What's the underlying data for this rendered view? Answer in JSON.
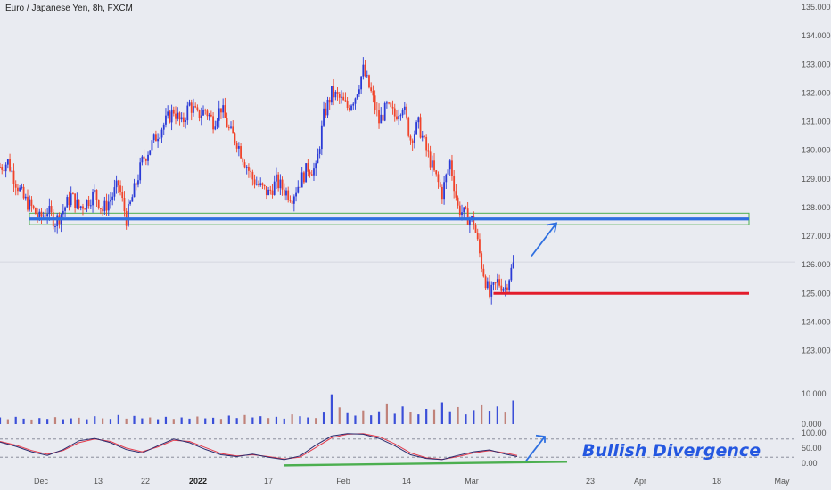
{
  "title": "Euro / Japanese Yen, 8h, FXCM",
  "chart_data": {
    "type": "candlestick",
    "price_axis": {
      "ylim": [
        122.3,
        135.0
      ],
      "ticks": [
        "135.000",
        "134.000",
        "133.000",
        "132.000",
        "131.000",
        "130.000",
        "129.000",
        "128.000",
        "127.000",
        "126.000",
        "125.000",
        "124.000",
        "123.000"
      ]
    },
    "volume_axis": {
      "ticks": [
        "10.000",
        "0.000"
      ]
    },
    "oscillator_axis": {
      "ylim": [
        0,
        100
      ],
      "ticks": [
        "100.00",
        "50.00",
        "0.00"
      ],
      "levels": [
        80,
        20
      ]
    },
    "x_ticks": [
      {
        "label": "Dec",
        "bold": false
      },
      {
        "label": "13",
        "bold": false
      },
      {
        "label": "22",
        "bold": false
      },
      {
        "label": "2022",
        "bold": true
      },
      {
        "label": "17",
        "bold": false
      },
      {
        "label": "Feb",
        "bold": false
      },
      {
        "label": "14",
        "bold": false
      },
      {
        "label": "Mar",
        "bold": false
      },
      {
        "label": "23",
        "bold": false
      },
      {
        "label": "Apr",
        "bold": false
      },
      {
        "label": "18",
        "bold": false
      },
      {
        "label": "May",
        "bold": false
      }
    ],
    "price_path": [
      [
        0,
        129.4
      ],
      [
        4,
        129.6
      ],
      [
        8,
        128.9
      ],
      [
        12,
        128.3
      ],
      [
        16,
        128.0
      ],
      [
        20,
        127.6
      ],
      [
        24,
        127.9
      ],
      [
        28,
        127.5
      ],
      [
        32,
        127.9
      ],
      [
        36,
        128.4
      ],
      [
        40,
        128.0
      ],
      [
        44,
        128.2
      ],
      [
        48,
        128.5
      ],
      [
        52,
        127.9
      ],
      [
        56,
        128.3
      ],
      [
        60,
        128.8
      ],
      [
        64,
        127.6
      ],
      [
        68,
        128.6
      ],
      [
        72,
        129.6
      ],
      [
        76,
        130.1
      ],
      [
        80,
        130.6
      ],
      [
        84,
        131.0
      ],
      [
        88,
        131.4
      ],
      [
        92,
        130.9
      ],
      [
        96,
        131.6
      ],
      [
        100,
        131.2
      ],
      [
        104,
        131.4
      ],
      [
        108,
        131.0
      ],
      [
        112,
        131.5
      ],
      [
        116,
        130.7
      ],
      [
        120,
        130.3
      ],
      [
        124,
        129.6
      ],
      [
        128,
        129.0
      ],
      [
        132,
        128.7
      ],
      [
        136,
        128.5
      ],
      [
        140,
        128.9
      ],
      [
        144,
        128.6
      ],
      [
        148,
        128.4
      ],
      [
        152,
        128.9
      ],
      [
        156,
        129.4
      ],
      [
        160,
        129.3
      ],
      [
        164,
        131.2
      ],
      [
        168,
        132.0
      ],
      [
        172,
        131.8
      ],
      [
        176,
        131.5
      ],
      [
        180,
        131.9
      ],
      [
        184,
        132.8
      ],
      [
        188,
        132.0
      ],
      [
        192,
        131.0
      ],
      [
        196,
        131.5
      ],
      [
        200,
        131.2
      ],
      [
        204,
        131.6
      ],
      [
        208,
        130.4
      ],
      [
        212,
        130.9
      ],
      [
        216,
        130.0
      ],
      [
        220,
        129.2
      ],
      [
        224,
        128.5
      ],
      [
        228,
        129.6
      ],
      [
        232,
        128.0
      ],
      [
        236,
        127.7
      ],
      [
        240,
        127.5
      ],
      [
        244,
        126.0
      ],
      [
        248,
        124.9
      ],
      [
        252,
        125.4
      ],
      [
        256,
        125.2
      ],
      [
        260,
        126.0
      ]
    ],
    "support_zone": {
      "from": 127.4,
      "to": 127.8
    },
    "support_line": 127.6,
    "target_line": 125.0,
    "volume": [
      [
        0,
        2.2
      ],
      [
        4,
        1.6
      ],
      [
        8,
        2.4
      ],
      [
        12,
        1.8
      ],
      [
        16,
        1.5
      ],
      [
        20,
        2.0
      ],
      [
        24,
        1.7
      ],
      [
        28,
        2.3
      ],
      [
        32,
        1.6
      ],
      [
        36,
        1.9
      ],
      [
        40,
        2.1
      ],
      [
        44,
        1.6
      ],
      [
        48,
        2.6
      ],
      [
        52,
        1.9
      ],
      [
        56,
        1.7
      ],
      [
        60,
        3.0
      ],
      [
        64,
        1.8
      ],
      [
        68,
        2.7
      ],
      [
        72,
        1.9
      ],
      [
        76,
        2.2
      ],
      [
        80,
        1.6
      ],
      [
        84,
        2.4
      ],
      [
        88,
        1.7
      ],
      [
        92,
        2.2
      ],
      [
        96,
        1.8
      ],
      [
        100,
        2.5
      ],
      [
        104,
        1.9
      ],
      [
        108,
        2.1
      ],
      [
        112,
        1.7
      ],
      [
        116,
        2.8
      ],
      [
        120,
        2.0
      ],
      [
        124,
        3.0
      ],
      [
        128,
        2.2
      ],
      [
        132,
        2.6
      ],
      [
        136,
        2.0
      ],
      [
        140,
        2.4
      ],
      [
        144,
        1.8
      ],
      [
        148,
        3.2
      ],
      [
        152,
        2.6
      ],
      [
        156,
        2.2
      ],
      [
        160,
        2.0
      ],
      [
        164,
        3.8
      ],
      [
        168,
        9.8
      ],
      [
        172,
        5.5
      ],
      [
        176,
        3.6
      ],
      [
        180,
        2.8
      ],
      [
        184,
        4.5
      ],
      [
        188,
        2.9
      ],
      [
        192,
        4.2
      ],
      [
        196,
        6.8
      ],
      [
        200,
        3.4
      ],
      [
        204,
        5.8
      ],
      [
        208,
        4.0
      ],
      [
        212,
        3.2
      ],
      [
        216,
        5.0
      ],
      [
        220,
        4.8
      ],
      [
        224,
        7.2
      ],
      [
        228,
        4.2
      ],
      [
        232,
        5.6
      ],
      [
        236,
        3.2
      ],
      [
        240,
        4.6
      ],
      [
        244,
        6.2
      ],
      [
        248,
        4.4
      ],
      [
        252,
        5.8
      ],
      [
        256,
        3.8
      ],
      [
        260,
        7.8
      ]
    ],
    "oscillator": {
      "k": [
        [
          0,
          70
        ],
        [
          8,
          56
        ],
        [
          16,
          38
        ],
        [
          24,
          26
        ],
        [
          32,
          45
        ],
        [
          40,
          74
        ],
        [
          48,
          82
        ],
        [
          56,
          68
        ],
        [
          64,
          45
        ],
        [
          72,
          34
        ],
        [
          80,
          58
        ],
        [
          88,
          80
        ],
        [
          96,
          68
        ],
        [
          104,
          46
        ],
        [
          112,
          28
        ],
        [
          120,
          22
        ],
        [
          128,
          30
        ],
        [
          136,
          20
        ],
        [
          144,
          12
        ],
        [
          152,
          24
        ],
        [
          160,
          60
        ],
        [
          168,
          90
        ],
        [
          176,
          98
        ],
        [
          184,
          96
        ],
        [
          192,
          82
        ],
        [
          200,
          58
        ],
        [
          208,
          28
        ],
        [
          216,
          16
        ],
        [
          224,
          12
        ],
        [
          232,
          26
        ],
        [
          240,
          38
        ],
        [
          248,
          44
        ],
        [
          256,
          30
        ],
        [
          262,
          22
        ]
      ],
      "d": [
        [
          0,
          72
        ],
        [
          8,
          60
        ],
        [
          16,
          42
        ],
        [
          24,
          30
        ],
        [
          32,
          42
        ],
        [
          40,
          68
        ],
        [
          48,
          80
        ],
        [
          56,
          72
        ],
        [
          64,
          50
        ],
        [
          72,
          38
        ],
        [
          80,
          54
        ],
        [
          88,
          76
        ],
        [
          96,
          72
        ],
        [
          104,
          52
        ],
        [
          112,
          32
        ],
        [
          120,
          24
        ],
        [
          128,
          28
        ],
        [
          136,
          22
        ],
        [
          144,
          14
        ],
        [
          152,
          20
        ],
        [
          160,
          52
        ],
        [
          168,
          84
        ],
        [
          176,
          96
        ],
        [
          184,
          98
        ],
        [
          192,
          88
        ],
        [
          200,
          64
        ],
        [
          208,
          34
        ],
        [
          216,
          18
        ],
        [
          224,
          13
        ],
        [
          232,
          22
        ],
        [
          240,
          34
        ],
        [
          248,
          42
        ],
        [
          256,
          34
        ],
        [
          262,
          26
        ]
      ]
    },
    "annotation": "Bullish Divergence",
    "colors": {
      "bull": "#2a3ad6",
      "bear": "#f0432a",
      "support": "#2e6fe0",
      "zone": "#4caf50",
      "target": "#e31c2c",
      "trend": "#4caf50",
      "arrow": "#2e6fe0",
      "vol_up": "#3b4fd8",
      "vol_down": "#c0827a",
      "osc_k": "#2c2c6e",
      "osc_d": "#e43c4c"
    }
  }
}
